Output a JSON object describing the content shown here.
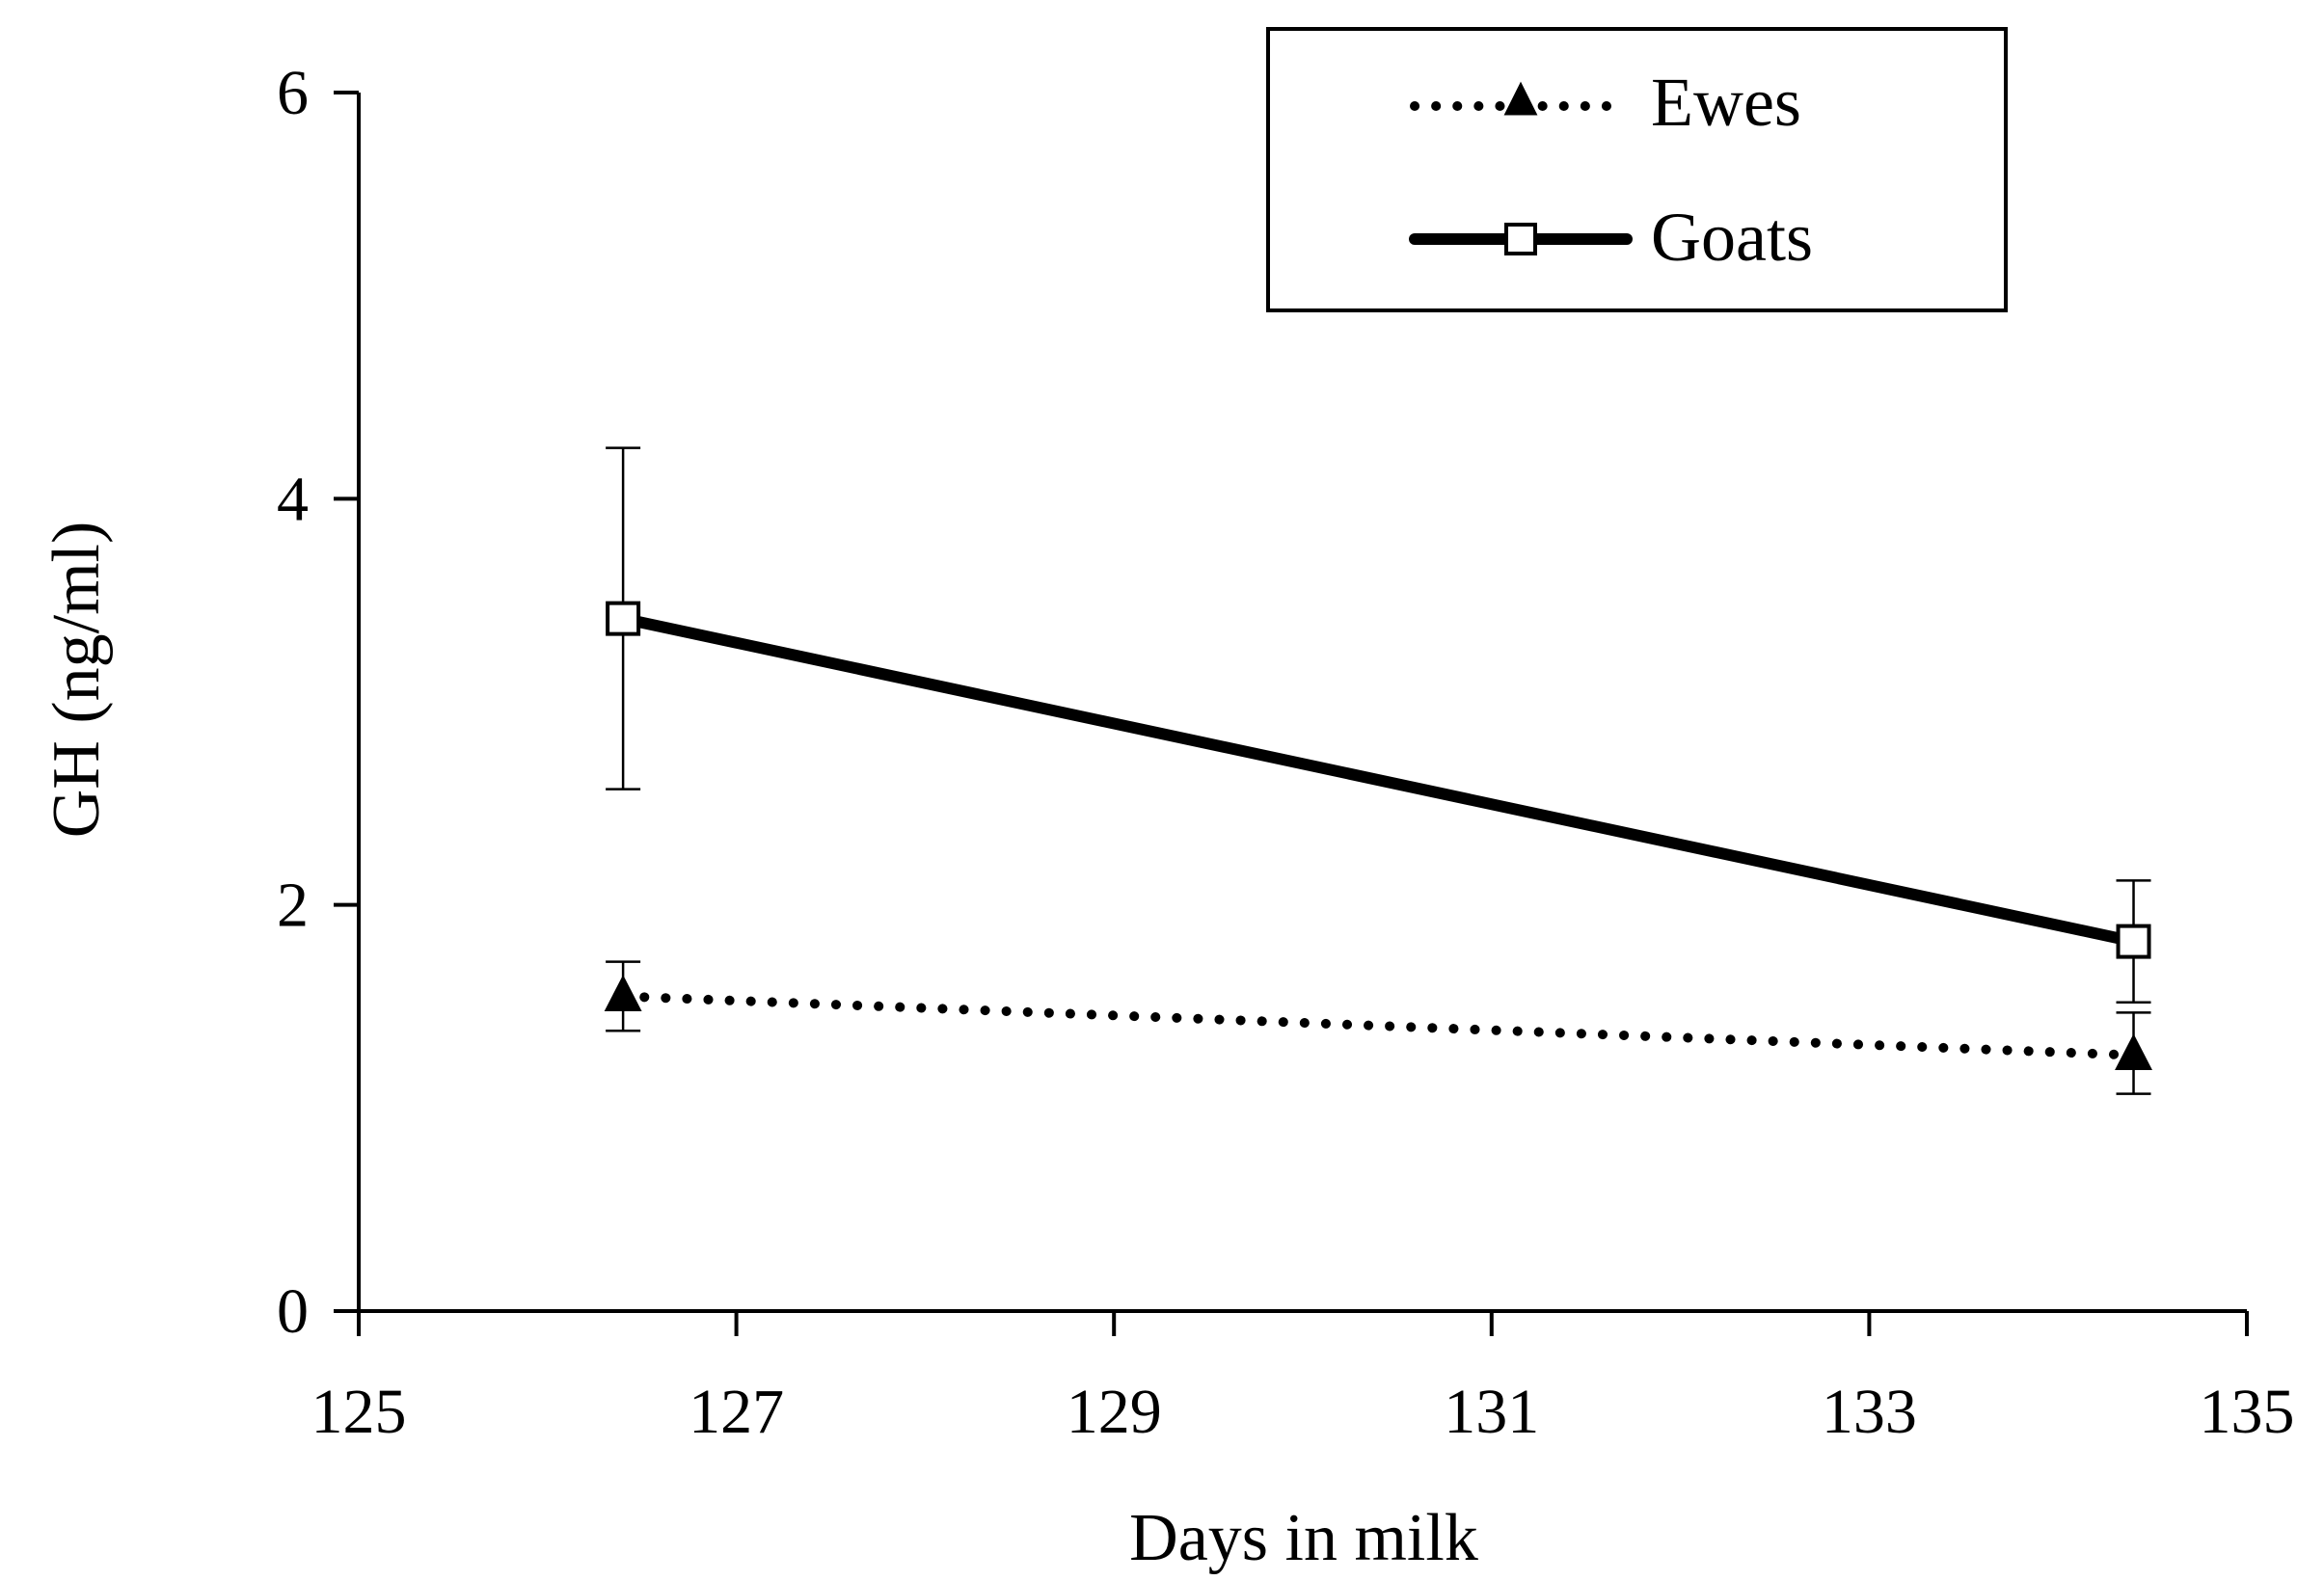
{
  "chart_data": {
    "type": "line",
    "title": "",
    "xlabel": "Days in milk",
    "ylabel": "GH (ng/ml)",
    "xlim": [
      125,
      135
    ],
    "ylim": [
      0,
      6
    ],
    "x_ticks": [
      "125",
      "127",
      "129",
      "131",
      "133",
      "135"
    ],
    "y_ticks": [
      "0",
      "2",
      "4",
      "6"
    ],
    "grid": false,
    "legend_position": "top-right",
    "series": [
      {
        "name": "Ewes",
        "marker": "filled-triangle",
        "line_style": "dotted",
        "color": "#000000",
        "points": [
          {
            "x": 126.4,
            "y": 1.55,
            "err_low": 1.38,
            "err_high": 1.72
          },
          {
            "x": 134.4,
            "y": 1.26,
            "err_low": 1.07,
            "err_high": 1.47
          }
        ]
      },
      {
        "name": "Goats",
        "marker": "open-square",
        "line_style": "solid",
        "color": "#000000",
        "points": [
          {
            "x": 126.4,
            "y": 3.41,
            "err_low": 2.57,
            "err_high": 4.25
          },
          {
            "x": 134.4,
            "y": 1.82,
            "err_low": 1.52,
            "err_high": 2.12
          }
        ]
      }
    ]
  }
}
